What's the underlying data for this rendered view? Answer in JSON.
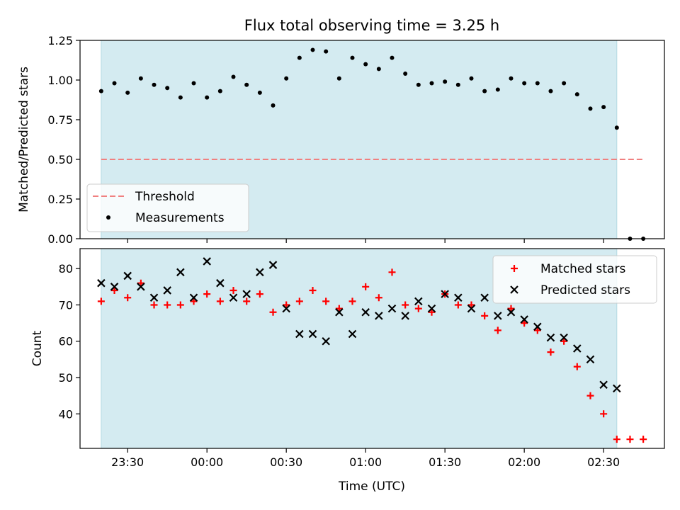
{
  "figure": {
    "title": "Flux total observing time = 3.25 h",
    "xlabel": "Time (UTC)"
  },
  "colors": {
    "observing_span": "#d4ebf1",
    "threshold": "#f08080",
    "measurement": "#000000",
    "matched": "#ff0000",
    "predicted": "#000000"
  },
  "chart_data": [
    {
      "type": "scatter",
      "ylabel": "Matched/Predicted stars",
      "ylim": [
        0.0,
        1.25
      ],
      "yticks": [
        0.0,
        0.25,
        0.5,
        0.75,
        1.0,
        1.25
      ],
      "ytick_labels": [
        "0.00",
        "0.25",
        "0.50",
        "0.75",
        "1.00",
        "1.25"
      ],
      "xticks": [
        "23:30",
        "00:00",
        "00:30",
        "01:00",
        "01:30",
        "02:00",
        "02:30"
      ],
      "observing_span": [
        "23:20",
        "02:35"
      ],
      "legend": {
        "placement": "lower-left",
        "entries": [
          {
            "label": "Threshold",
            "kind": "dashed-line"
          },
          {
            "label": "Measurements",
            "kind": "dot"
          }
        ]
      },
      "threshold": {
        "y": 0.5,
        "x_start": "23:20",
        "x_end": "02:45"
      },
      "measurements": {
        "x": [
          "23:20",
          "23:25",
          "23:30",
          "23:35",
          "23:40",
          "23:45",
          "23:50",
          "23:55",
          "00:00",
          "00:05",
          "00:10",
          "00:15",
          "00:20",
          "00:25",
          "00:30",
          "00:35",
          "00:40",
          "00:45",
          "00:50",
          "00:55",
          "01:00",
          "01:05",
          "01:10",
          "01:15",
          "01:20",
          "01:25",
          "01:30",
          "01:35",
          "01:40",
          "01:45",
          "01:50",
          "01:55",
          "02:00",
          "02:05",
          "02:10",
          "02:15",
          "02:20",
          "02:25",
          "02:30",
          "02:35",
          "02:40",
          "02:45"
        ],
        "y": [
          0.93,
          0.98,
          0.92,
          1.01,
          0.97,
          0.95,
          0.89,
          0.98,
          0.89,
          0.93,
          1.02,
          0.97,
          0.92,
          0.84,
          1.01,
          1.14,
          1.19,
          1.18,
          1.01,
          1.14,
          1.1,
          1.07,
          1.14,
          1.04,
          0.97,
          0.98,
          0.99,
          0.97,
          1.01,
          0.93,
          0.94,
          1.01,
          0.98,
          0.98,
          0.93,
          0.98,
          0.91,
          0.82,
          0.83,
          0.7,
          0.0,
          0.0
        ]
      }
    },
    {
      "type": "scatter",
      "ylabel": "Count",
      "ylim": [
        30.5,
        85.5
      ],
      "yticks": [
        40,
        50,
        60,
        70,
        80
      ],
      "ytick_labels": [
        "40",
        "50",
        "60",
        "70",
        "80"
      ],
      "xticks": [
        "23:30",
        "00:00",
        "00:30",
        "01:00",
        "01:30",
        "02:00",
        "02:30"
      ],
      "xtick_labels": [
        "23:30",
        "00:00",
        "00:30",
        "01:00",
        "01:30",
        "02:00",
        "02:30"
      ],
      "observing_span": [
        "23:20",
        "02:35"
      ],
      "legend": {
        "placement": "upper-right",
        "entries": [
          {
            "label": "Matched stars",
            "kind": "plus"
          },
          {
            "label": "Predicted stars",
            "kind": "x"
          }
        ]
      },
      "series": [
        {
          "name": "Matched stars",
          "marker": "plus",
          "x": [
            "23:20",
            "23:25",
            "23:30",
            "23:35",
            "23:40",
            "23:45",
            "23:50",
            "23:55",
            "00:00",
            "00:05",
            "00:10",
            "00:15",
            "00:20",
            "00:25",
            "00:30",
            "00:35",
            "00:40",
            "00:45",
            "00:50",
            "00:55",
            "01:00",
            "01:05",
            "01:10",
            "01:15",
            "01:20",
            "01:25",
            "01:30",
            "01:35",
            "01:40",
            "01:45",
            "01:50",
            "01:55",
            "02:00",
            "02:05",
            "02:10",
            "02:15",
            "02:20",
            "02:25",
            "02:30",
            "02:35",
            "02:40",
            "02:45"
          ],
          "y": [
            71,
            74,
            72,
            76,
            70,
            70,
            70,
            71,
            73,
            71,
            74,
            71,
            73,
            68,
            70,
            71,
            74,
            71,
            69,
            71,
            75,
            72,
            79,
            70,
            69,
            68,
            73,
            70,
            70,
            67,
            63,
            69,
            65,
            63,
            57,
            60,
            53,
            45,
            40,
            33,
            33,
            33
          ]
        },
        {
          "name": "Predicted stars",
          "marker": "x",
          "x": [
            "23:20",
            "23:25",
            "23:30",
            "23:35",
            "23:40",
            "23:45",
            "23:50",
            "23:55",
            "00:00",
            "00:05",
            "00:10",
            "00:15",
            "00:20",
            "00:25",
            "00:30",
            "00:35",
            "00:40",
            "00:45",
            "00:50",
            "00:55",
            "01:00",
            "01:05",
            "01:10",
            "01:15",
            "01:20",
            "01:25",
            "01:30",
            "01:35",
            "01:40",
            "01:45",
            "01:50",
            "01:55",
            "02:00",
            "02:05",
            "02:10",
            "02:15",
            "02:20",
            "02:25",
            "02:30",
            "02:35"
          ],
          "y": [
            76,
            75,
            78,
            75,
            72,
            74,
            79,
            72,
            82,
            76,
            72,
            73,
            79,
            81,
            69,
            62,
            62,
            60,
            68,
            62,
            68,
            67,
            69,
            67,
            71,
            69,
            73,
            72,
            69,
            72,
            67,
            68,
            66,
            64,
            61,
            61,
            58,
            55,
            48,
            47
          ]
        }
      ]
    }
  ]
}
